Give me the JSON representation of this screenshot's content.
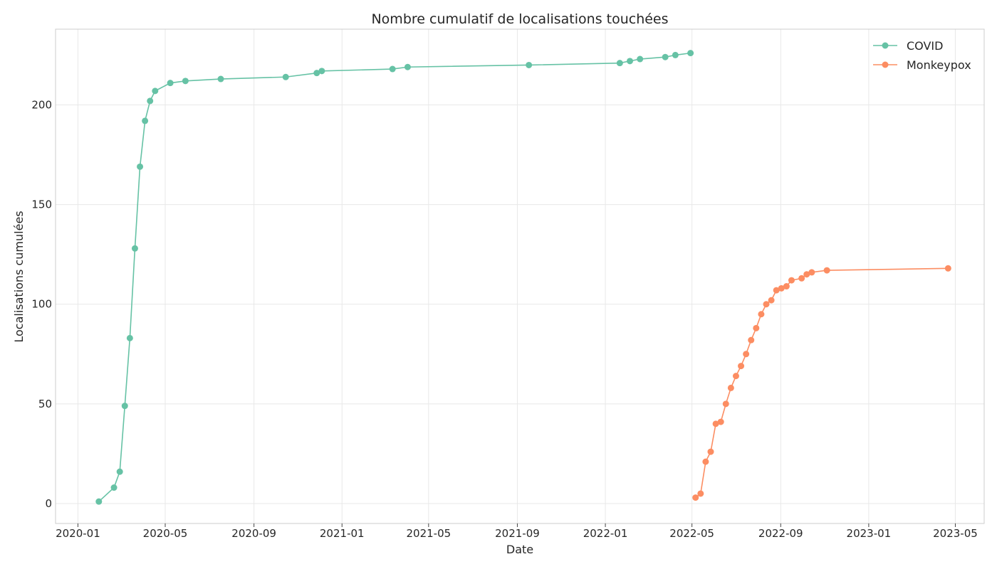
{
  "chart_data": {
    "type": "line",
    "title": "Nombre cumulatif de localisations touchées",
    "xlabel": "Date",
    "ylabel": "Localisations cumulées",
    "xlim": [
      "2019-12-01",
      "2023-06-10"
    ],
    "ylim": [
      -10,
      238
    ],
    "x_ticks": [
      "2020-01",
      "2020-05",
      "2020-09",
      "2021-01",
      "2021-05",
      "2021-09",
      "2022-01",
      "2022-05",
      "2022-09",
      "2023-01",
      "2023-05"
    ],
    "y_ticks": [
      0,
      50,
      100,
      150,
      200
    ],
    "grid": true,
    "legend_position": "top-right",
    "series": [
      {
        "name": "COVID",
        "color": "#66c2a5",
        "points": [
          {
            "x": "2020-01-30",
            "y": 1
          },
          {
            "x": "2020-02-20",
            "y": 8
          },
          {
            "x": "2020-02-28",
            "y": 16
          },
          {
            "x": "2020-03-06",
            "y": 49
          },
          {
            "x": "2020-03-13",
            "y": 83
          },
          {
            "x": "2020-03-20",
            "y": 128
          },
          {
            "x": "2020-03-27",
            "y": 169
          },
          {
            "x": "2020-04-03",
            "y": 192
          },
          {
            "x": "2020-04-10",
            "y": 202
          },
          {
            "x": "2020-04-17",
            "y": 207
          },
          {
            "x": "2020-05-08",
            "y": 211
          },
          {
            "x": "2020-05-29",
            "y": 212
          },
          {
            "x": "2020-07-17",
            "y": 213
          },
          {
            "x": "2020-10-15",
            "y": 214
          },
          {
            "x": "2020-11-27",
            "y": 216
          },
          {
            "x": "2020-12-04",
            "y": 217
          },
          {
            "x": "2021-03-12",
            "y": 218
          },
          {
            "x": "2021-04-02",
            "y": 219
          },
          {
            "x": "2021-09-17",
            "y": 220
          },
          {
            "x": "2022-01-21",
            "y": 221
          },
          {
            "x": "2022-02-04",
            "y": 222
          },
          {
            "x": "2022-02-18",
            "y": 223
          },
          {
            "x": "2022-03-25",
            "y": 224
          },
          {
            "x": "2022-04-08",
            "y": 225
          },
          {
            "x": "2022-04-29",
            "y": 226
          }
        ]
      },
      {
        "name": "Monkeypox",
        "color": "#fc8d62",
        "points": [
          {
            "x": "2022-05-06",
            "y": 3
          },
          {
            "x": "2022-05-13",
            "y": 5
          },
          {
            "x": "2022-05-20",
            "y": 21
          },
          {
            "x": "2022-05-27",
            "y": 26
          },
          {
            "x": "2022-06-03",
            "y": 40
          },
          {
            "x": "2022-06-10",
            "y": 41
          },
          {
            "x": "2022-06-17",
            "y": 50
          },
          {
            "x": "2022-06-24",
            "y": 58
          },
          {
            "x": "2022-07-01",
            "y": 64
          },
          {
            "x": "2022-07-08",
            "y": 69
          },
          {
            "x": "2022-07-15",
            "y": 75
          },
          {
            "x": "2022-07-22",
            "y": 82
          },
          {
            "x": "2022-07-29",
            "y": 88
          },
          {
            "x": "2022-08-05",
            "y": 95
          },
          {
            "x": "2022-08-12",
            "y": 100
          },
          {
            "x": "2022-08-19",
            "y": 102
          },
          {
            "x": "2022-08-26",
            "y": 107
          },
          {
            "x": "2022-09-02",
            "y": 108
          },
          {
            "x": "2022-09-09",
            "y": 109
          },
          {
            "x": "2022-09-16",
            "y": 112
          },
          {
            "x": "2022-09-30",
            "y": 113
          },
          {
            "x": "2022-10-07",
            "y": 115
          },
          {
            "x": "2022-10-14",
            "y": 116
          },
          {
            "x": "2022-11-04",
            "y": 117
          },
          {
            "x": "2023-04-21",
            "y": 118
          }
        ]
      }
    ]
  }
}
